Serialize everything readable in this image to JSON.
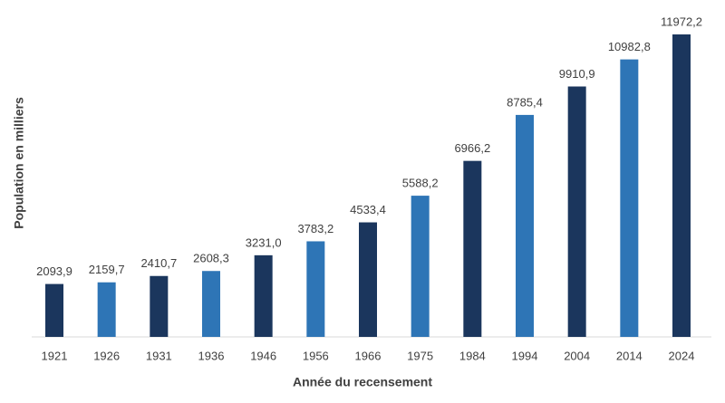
{
  "chart_data": {
    "type": "bar",
    "x_axis_label": "Année du recensement",
    "y_axis_label": "Population en milliers",
    "categories": [
      "1921",
      "1926",
      "1931",
      "1936",
      "1946",
      "1956",
      "1966",
      "1975",
      "1984",
      "1994",
      "2004",
      "2014",
      "2024"
    ],
    "values": [
      2093.9,
      2159.7,
      2410.7,
      2608.3,
      3231.0,
      3783.2,
      4533.4,
      5588.2,
      6966.2,
      8785.4,
      9910.9,
      10982.8,
      11972.2
    ],
    "value_labels": [
      "2093,9",
      "2159,7",
      "2410,7",
      "2608,3",
      "3231,0",
      "3783,2",
      "4533,4",
      "5588,2",
      "6966,2",
      "8785,4",
      "9910,9",
      "10982,8",
      "11972,2"
    ],
    "colors": [
      "#1b365d",
      "#2e75b6",
      "#1b365d",
      "#2e75b6",
      "#1b365d",
      "#2e75b6",
      "#1b365d",
      "#2e75b6",
      "#1b365d",
      "#2e75b6",
      "#1b365d",
      "#2e75b6",
      "#1b365d"
    ]
  }
}
